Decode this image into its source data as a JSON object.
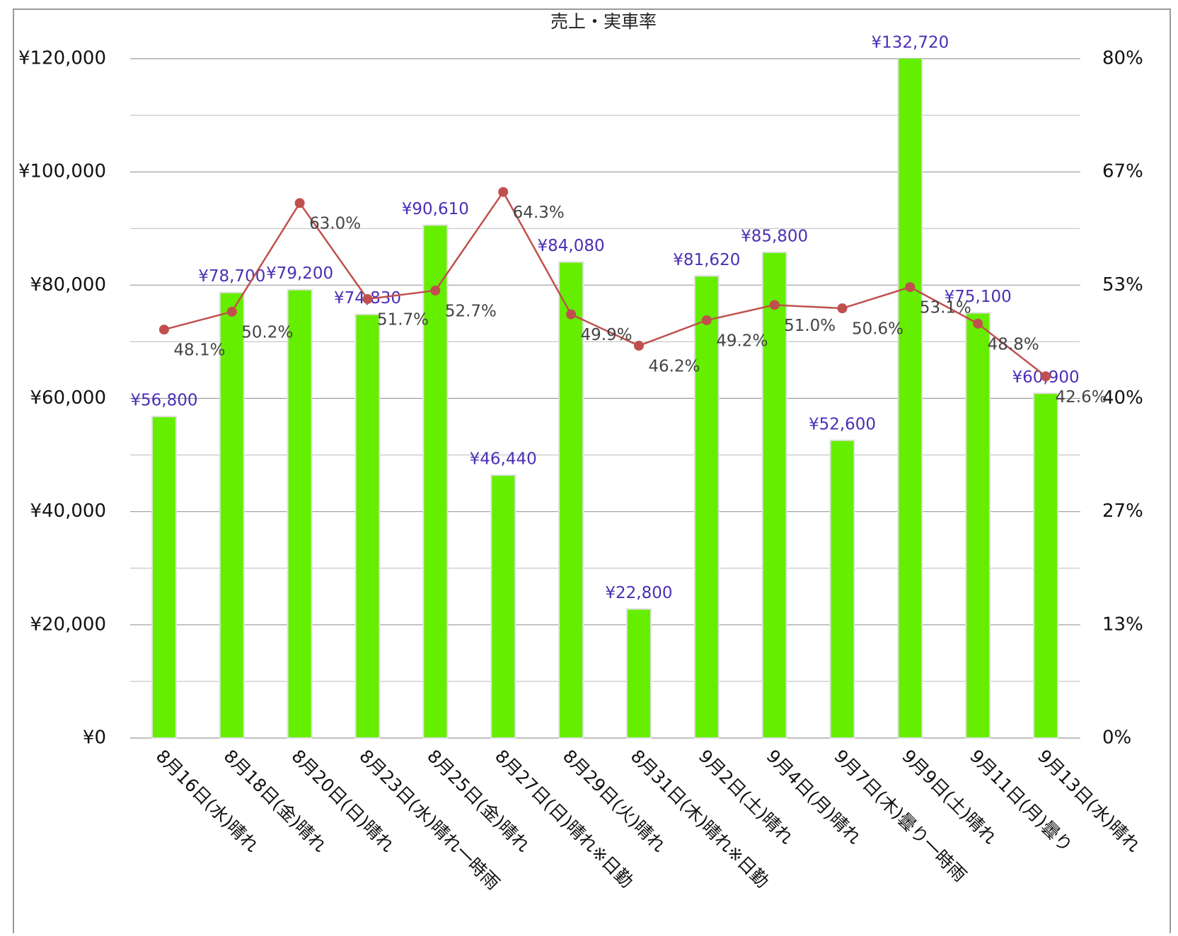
{
  "chart_data": {
    "type": "bar_line",
    "title": "売上・実車率",
    "categories": [
      "8月16日(水)晴れ",
      "8月18日(金)晴れ",
      "8月20日(日)晴れ",
      "8月23日(水)晴れ一時雨",
      "8月25日(金)晴れ",
      "8月27日(日)晴れ※日勤",
      "8月29日(火)晴れ",
      "8月31日(木)晴れ※日勤",
      "9月2日(土)晴れ",
      "9月4日(月)晴れ",
      "9月7日(木)曇り一時雨",
      "9月9日(土)晴れ",
      "9月11日(月)曇り",
      "9月13日(水)晴れ"
    ],
    "series": [
      {
        "type": "bar",
        "color": "#66ee00",
        "label_color": "#4b2fb5",
        "values": [
          56800,
          78700,
          79200,
          74830,
          90610,
          46440,
          84080,
          22800,
          81620,
          85800,
          52600,
          132720,
          75100,
          60900
        ],
        "value_labels": [
          "¥56,800",
          "¥78,700",
          "¥79,200",
          "¥74,830",
          "¥90,610",
          "¥46,440",
          "¥84,080",
          "¥22,800",
          "¥81,620",
          "¥85,800",
          "¥52,600",
          "¥132,720",
          "¥75,100",
          "¥60,900"
        ]
      },
      {
        "type": "line",
        "axis": "y2",
        "color": "#c0504d",
        "label_color": "#444444",
        "values": [
          48.1,
          50.2,
          63.0,
          51.7,
          52.7,
          64.3,
          49.9,
          46.2,
          49.2,
          51.0,
          50.6,
          53.1,
          48.8,
          42.6
        ],
        "value_labels": [
          "48.1%",
          "50.2%",
          "63.0%",
          "51.7%",
          "52.7%",
          "64.3%",
          "49.9%",
          "46.2%",
          "49.2%",
          "51.0%",
          "50.6%",
          "53.1%",
          "48.8%",
          "42.6%"
        ]
      }
    ],
    "ylim": [
      0,
      120000
    ],
    "yticks": [
      {
        "value": 0,
        "label": "¥0"
      },
      {
        "value": 20000,
        "label": "¥20,000"
      },
      {
        "value": 40000,
        "label": "¥40,000"
      },
      {
        "value": 60000,
        "label": "¥60,000"
      },
      {
        "value": 80000,
        "label": "¥80,000"
      },
      {
        "value": 100000,
        "label": "¥100,000"
      },
      {
        "value": 120000,
        "label": "¥120,000"
      }
    ],
    "y_minor_ticks": [
      10000,
      30000,
      50000,
      70000,
      90000,
      110000
    ],
    "y2lim": [
      0,
      80
    ],
    "y2ticks": [
      {
        "value": 0,
        "label": "0%"
      },
      {
        "value": 13.333,
        "label": "13%"
      },
      {
        "value": 26.667,
        "label": "27%"
      },
      {
        "value": 40,
        "label": "40%"
      },
      {
        "value": 53.333,
        "label": "53%"
      },
      {
        "value": 66.667,
        "label": "67%"
      },
      {
        "value": 80,
        "label": "80%"
      }
    ],
    "grid": true
  }
}
